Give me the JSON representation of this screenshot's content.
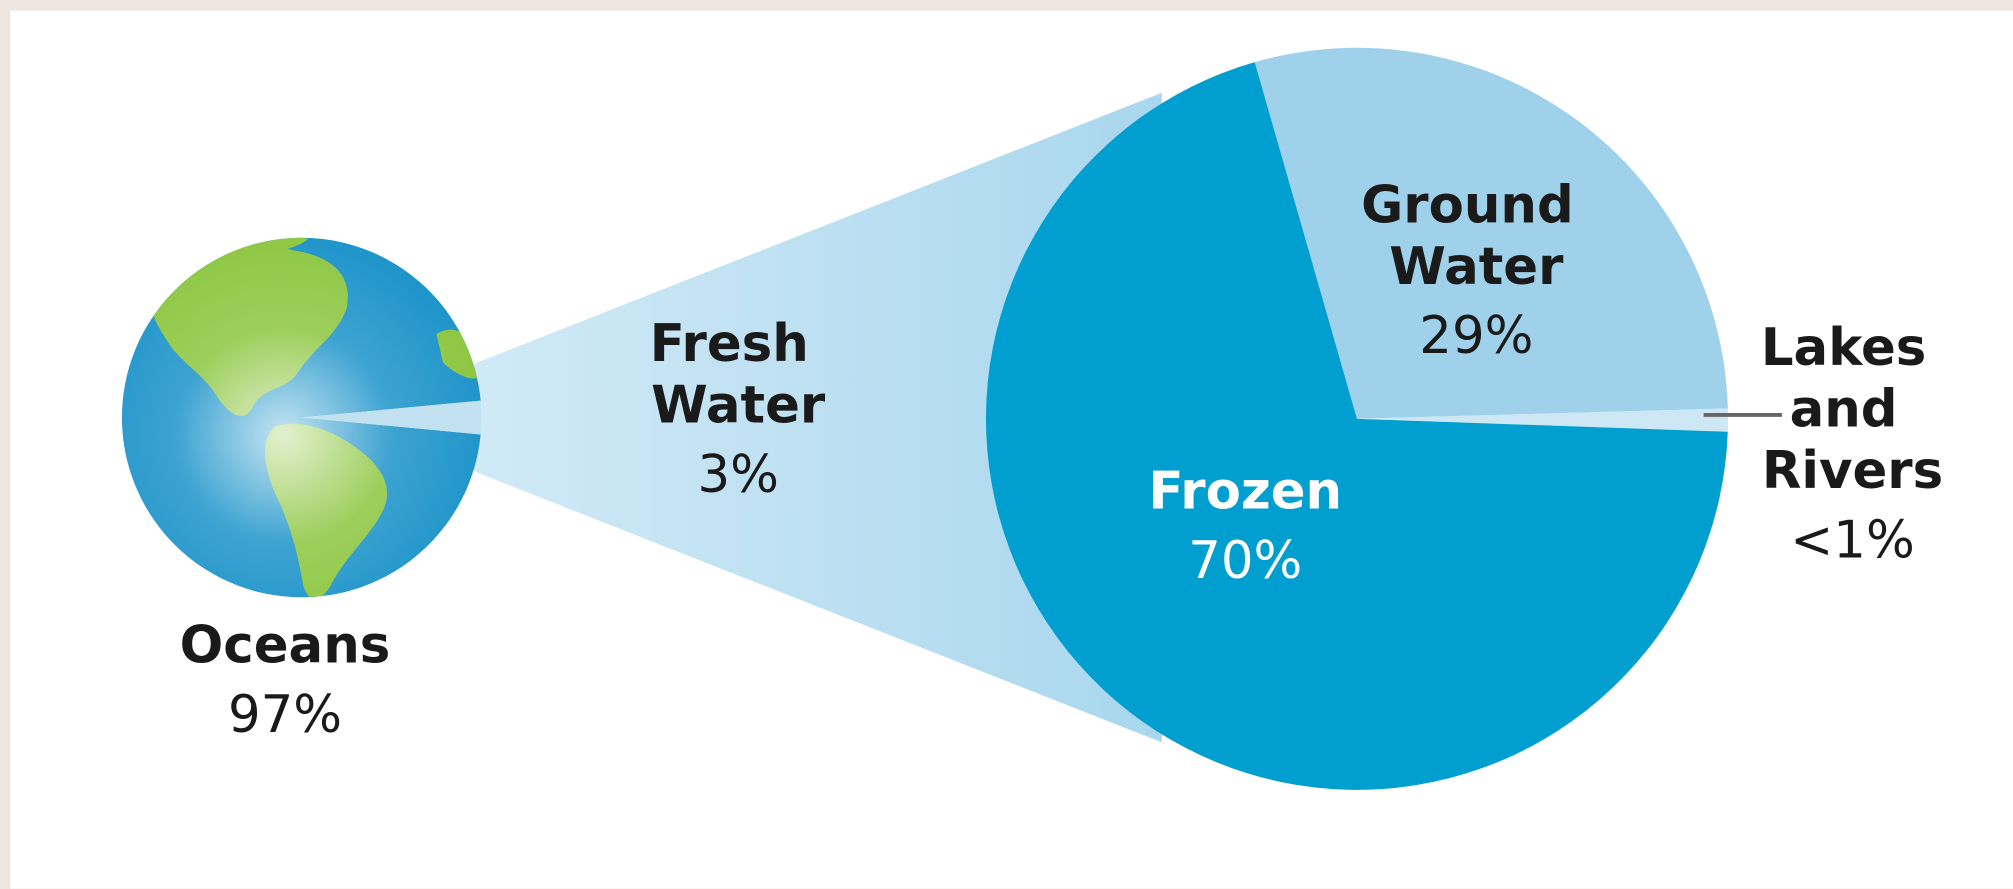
{
  "chart_data": [
    {
      "type": "pie",
      "categories": [
        "Oceans",
        "Fresh Water"
      ],
      "values": [
        97,
        3
      ],
      "value_labels": [
        "97%",
        "3%"
      ],
      "colors": [
        "#1b93c9",
        "#c2e2f1"
      ]
    },
    {
      "type": "pie",
      "categories": [
        "Ground Water",
        "Lakes and Rivers",
        "Frozen"
      ],
      "values": [
        29,
        1,
        70
      ],
      "value_labels": [
        "29%",
        "<1%",
        "70%"
      ],
      "colors": [
        "#9fd2ea",
        "#cde8f4",
        "#009fcf"
      ]
    }
  ]
}
